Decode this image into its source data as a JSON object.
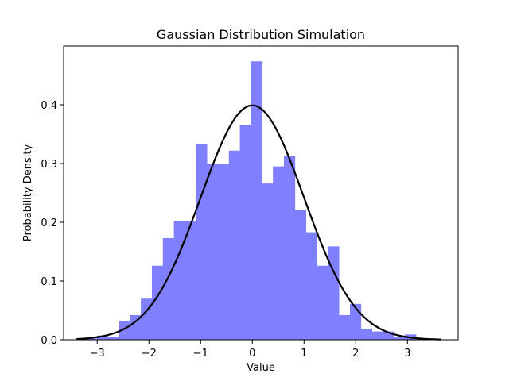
{
  "chart_data": {
    "type": "bar",
    "title": "Gaussian Distribution Simulation",
    "xlabel": "Value",
    "ylabel": "Probability Density",
    "xlim": [
      -3.65,
      3.98
    ],
    "ylim": [
      0,
      0.5
    ],
    "x_ticks": [
      -3,
      -2,
      -1,
      0,
      1,
      2,
      3
    ],
    "x_tick_labels": [
      "−3",
      "−2",
      "−1",
      "0",
      "1",
      "2",
      "3"
    ],
    "y_ticks": [
      0.0,
      0.1,
      0.2,
      0.3,
      0.4
    ],
    "y_tick_labels": [
      "0.0",
      "0.1",
      "0.2",
      "0.3",
      "0.4"
    ],
    "grid": false,
    "histogram": {
      "color": "#8080ff",
      "bin_start": -3.22,
      "bin_width": 0.2128,
      "densities": [
        0.002,
        0.007,
        0.005,
        0.032,
        0.042,
        0.07,
        0.126,
        0.173,
        0.202,
        0.202,
        0.333,
        0.3,
        0.3,
        0.322,
        0.366,
        0.474,
        0.266,
        0.295,
        0.313,
        0.221,
        0.183,
        0.126,
        0.159,
        0.042,
        0.061,
        0.019,
        0.014,
        0.014,
        0.005,
        0.009
      ]
    },
    "series": [
      {
        "type": "line",
        "function": "normal_pdf",
        "mean": 0,
        "std": 1,
        "x_range": [
          -3.4,
          3.65
        ],
        "color": "#000000"
      }
    ]
  }
}
